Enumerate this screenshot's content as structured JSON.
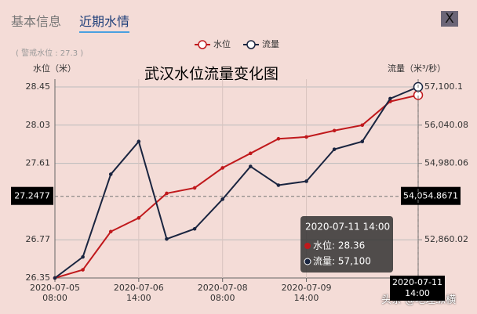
{
  "tabs": [
    "基本信息",
    "近期水情"
  ],
  "close": "X",
  "chart_data": {
    "type": "line",
    "title": "武汉水位流量变化图",
    "warning_label": "( 警戒水位 : 27.3 )",
    "ylabel": "水位（米）",
    "y2label": "流量（米³/秒）",
    "categories": [
      "2020-07-05 08:00",
      null,
      null,
      "2020-07-06 14:00",
      null,
      null,
      "2020-07-08 08:00",
      null,
      null,
      "2020-07-09 14:00",
      null,
      null,
      null,
      "2020-07-11 14:00"
    ],
    "series": [
      {
        "name": "水位",
        "color": "#c0191c",
        "values": [
          26.35,
          26.44,
          26.86,
          27.01,
          27.28,
          27.34,
          27.56,
          27.72,
          27.88,
          27.9,
          27.97,
          28.03,
          28.29,
          28.36
        ]
      },
      {
        "name": "流量",
        "color": "#1a2540",
        "axis": "y2",
        "values": [
          51800,
          52384,
          54677,
          55586,
          52882,
          53163,
          53985,
          54894,
          54374,
          54483,
          55370,
          55586,
          56776,
          57100
        ]
      }
    ],
    "ylim": [
      26.35,
      28.45
    ],
    "yticks": [
      26.35,
      26.77,
      27.61,
      28.03,
      28.45
    ],
    "y2lim": [
      51800,
      57100.1
    ],
    "y2ticks": [
      {
        "value": 52860.02,
        "label": "52,860.02"
      },
      {
        "value": 54980.06,
        "label": "54,980.06"
      },
      {
        "value": 56040.08,
        "label": "56,040.08"
      },
      {
        "value": 57100.1,
        "label": "57,100.1"
      }
    ],
    "grid": true,
    "crosshair": {
      "y": 27.2477,
      "y2": {
        "value": 54054.8671,
        "label": "54,054.8671"
      }
    },
    "tooltip": {
      "title": "2020-07-11 14:00",
      "lines": [
        "水位: 28.36",
        "流量: 57,100"
      ]
    }
  },
  "watermark": "头条 @地理纵横"
}
